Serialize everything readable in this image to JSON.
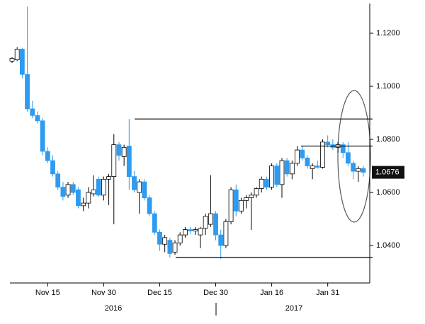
{
  "chart_data": {
    "type": "candlestick",
    "categories": [
      null,
      null,
      null,
      null,
      null,
      null,
      null,
      "Nov 15",
      null,
      null,
      null,
      null,
      null,
      null,
      null,
      null,
      null,
      null,
      "Nov 30",
      null,
      null,
      null,
      null,
      null,
      null,
      null,
      null,
      null,
      null,
      "Dec 15",
      null,
      null,
      null,
      null,
      null,
      null,
      null,
      null,
      null,
      null,
      "Dec 30",
      null,
      null,
      null,
      null,
      null,
      null,
      null,
      null,
      null,
      null,
      "Jan 16",
      null,
      null,
      null,
      null,
      null,
      null,
      null,
      null,
      null,
      null,
      "Jan 31",
      null,
      null,
      null,
      null,
      null,
      null,
      null
    ],
    "x_group_labels": [
      "2016",
      "2017"
    ],
    "open": [
      1.1095,
      1.11,
      1.114,
      1.1045,
      1.0915,
      1.089,
      1.087,
      1.0755,
      1.072,
      1.067,
      1.062,
      1.059,
      1.063,
      1.061,
      1.055,
      1.056,
      1.0595,
      1.065,
      1.059,
      1.065,
      1.066,
      1.078,
      1.0735,
      1.0775,
      1.066,
      1.06,
      1.064,
      1.058,
      1.052,
      1.045,
      1.0405,
      1.042,
      1.0375,
      1.041,
      1.044,
      1.046,
      1.0455,
      1.044,
      1.0465,
      1.048,
      1.052,
      1.044,
      1.04,
      1.049,
      1.061,
      1.053,
      1.057,
      1.058,
      1.059,
      1.0615,
      1.065,
      1.062,
      1.07,
      1.063,
      1.072,
      1.067,
      1.071,
      1.076,
      1.073,
      1.069,
      1.07,
      1.0695,
      1.079,
      1.078,
      1.077,
      1.078,
      1.075,
      1.071,
      1.068,
      1.069
    ],
    "high": [
      1.111,
      1.1148,
      1.1145,
      1.13,
      1.0945,
      1.0905,
      1.088,
      1.077,
      1.074,
      1.068,
      1.064,
      1.064,
      1.064,
      1.062,
      1.058,
      1.062,
      1.0665,
      1.066,
      1.066,
      1.067,
      1.082,
      1.079,
      1.078,
      1.0877,
      1.068,
      1.065,
      1.065,
      1.059,
      1.053,
      1.046,
      1.044,
      1.043,
      1.042,
      1.045,
      1.047,
      1.047,
      1.047,
      1.047,
      1.052,
      1.0665,
      1.053,
      1.046,
      1.05,
      1.062,
      1.063,
      1.058,
      1.059,
      1.06,
      1.062,
      1.066,
      1.066,
      1.071,
      1.071,
      1.073,
      1.073,
      1.072,
      1.0775,
      1.0775,
      1.074,
      1.071,
      1.072,
      1.08,
      1.0815,
      1.08,
      1.079,
      1.079,
      1.079,
      1.072,
      1.07,
      1.07
    ],
    "low": [
      1.1088,
      1.1095,
      1.103,
      1.0905,
      1.088,
      1.086,
      1.074,
      1.071,
      1.066,
      1.061,
      1.057,
      1.058,
      1.059,
      1.054,
      1.053,
      1.054,
      1.0585,
      1.0585,
      1.057,
      1.0552,
      1.048,
      1.072,
      1.07,
      1.061,
      1.06,
      1.052,
      1.057,
      1.051,
      1.044,
      1.038,
      1.0375,
      1.0355,
      1.0365,
      1.04,
      1.043,
      1.0445,
      1.044,
      1.039,
      1.044,
      1.047,
      1.042,
      1.035,
      1.039,
      1.048,
      1.051,
      1.052,
      1.054,
      1.0459,
      1.058,
      1.06,
      1.061,
      1.061,
      1.062,
      1.058,
      1.066,
      1.065,
      1.07,
      1.072,
      1.069,
      1.065,
      1.069,
      1.069,
      1.077,
      1.076,
      1.075,
      1.073,
      1.07,
      1.065,
      1.064,
      1.066
    ],
    "close": [
      1.1105,
      1.114,
      1.1045,
      1.0915,
      1.089,
      1.087,
      1.0755,
      1.072,
      1.067,
      1.062,
      1.0585,
      1.063,
      1.06,
      1.055,
      1.056,
      1.06,
      1.061,
      1.059,
      1.065,
      1.066,
      1.078,
      1.074,
      1.077,
      1.066,
      1.061,
      1.064,
      1.058,
      1.052,
      1.045,
      1.0405,
      1.043,
      1.037,
      1.041,
      1.044,
      1.046,
      1.0455,
      1.046,
      1.0465,
      1.051,
      1.052,
      1.044,
      1.04,
      1.049,
      1.061,
      1.053,
      1.057,
      1.058,
      1.059,
      1.0615,
      1.065,
      1.062,
      1.07,
      1.063,
      1.072,
      1.067,
      1.071,
      1.076,
      1.073,
      1.07,
      1.07,
      1.0695,
      1.079,
      1.078,
      1.077,
      1.078,
      1.075,
      1.071,
      1.068,
      1.069,
      1.0676
    ],
    "up_color": "#ffffff",
    "down_color": "#2e9bf0",
    "ylim": [
      1.0259,
      1.1312
    ],
    "yticks": [
      {
        "value": 1.04,
        "label": "1.0400"
      },
      {
        "value": 1.06,
        "label": "1.0600"
      },
      {
        "value": 1.08,
        "label": "1.0800"
      },
      {
        "value": 1.1,
        "label": "1.1000"
      },
      {
        "value": 1.12,
        "label": "1.1200"
      }
    ],
    "levels": [
      1.0877,
      1.0355,
      1.0775
    ],
    "last_price": 1.0676
  }
}
